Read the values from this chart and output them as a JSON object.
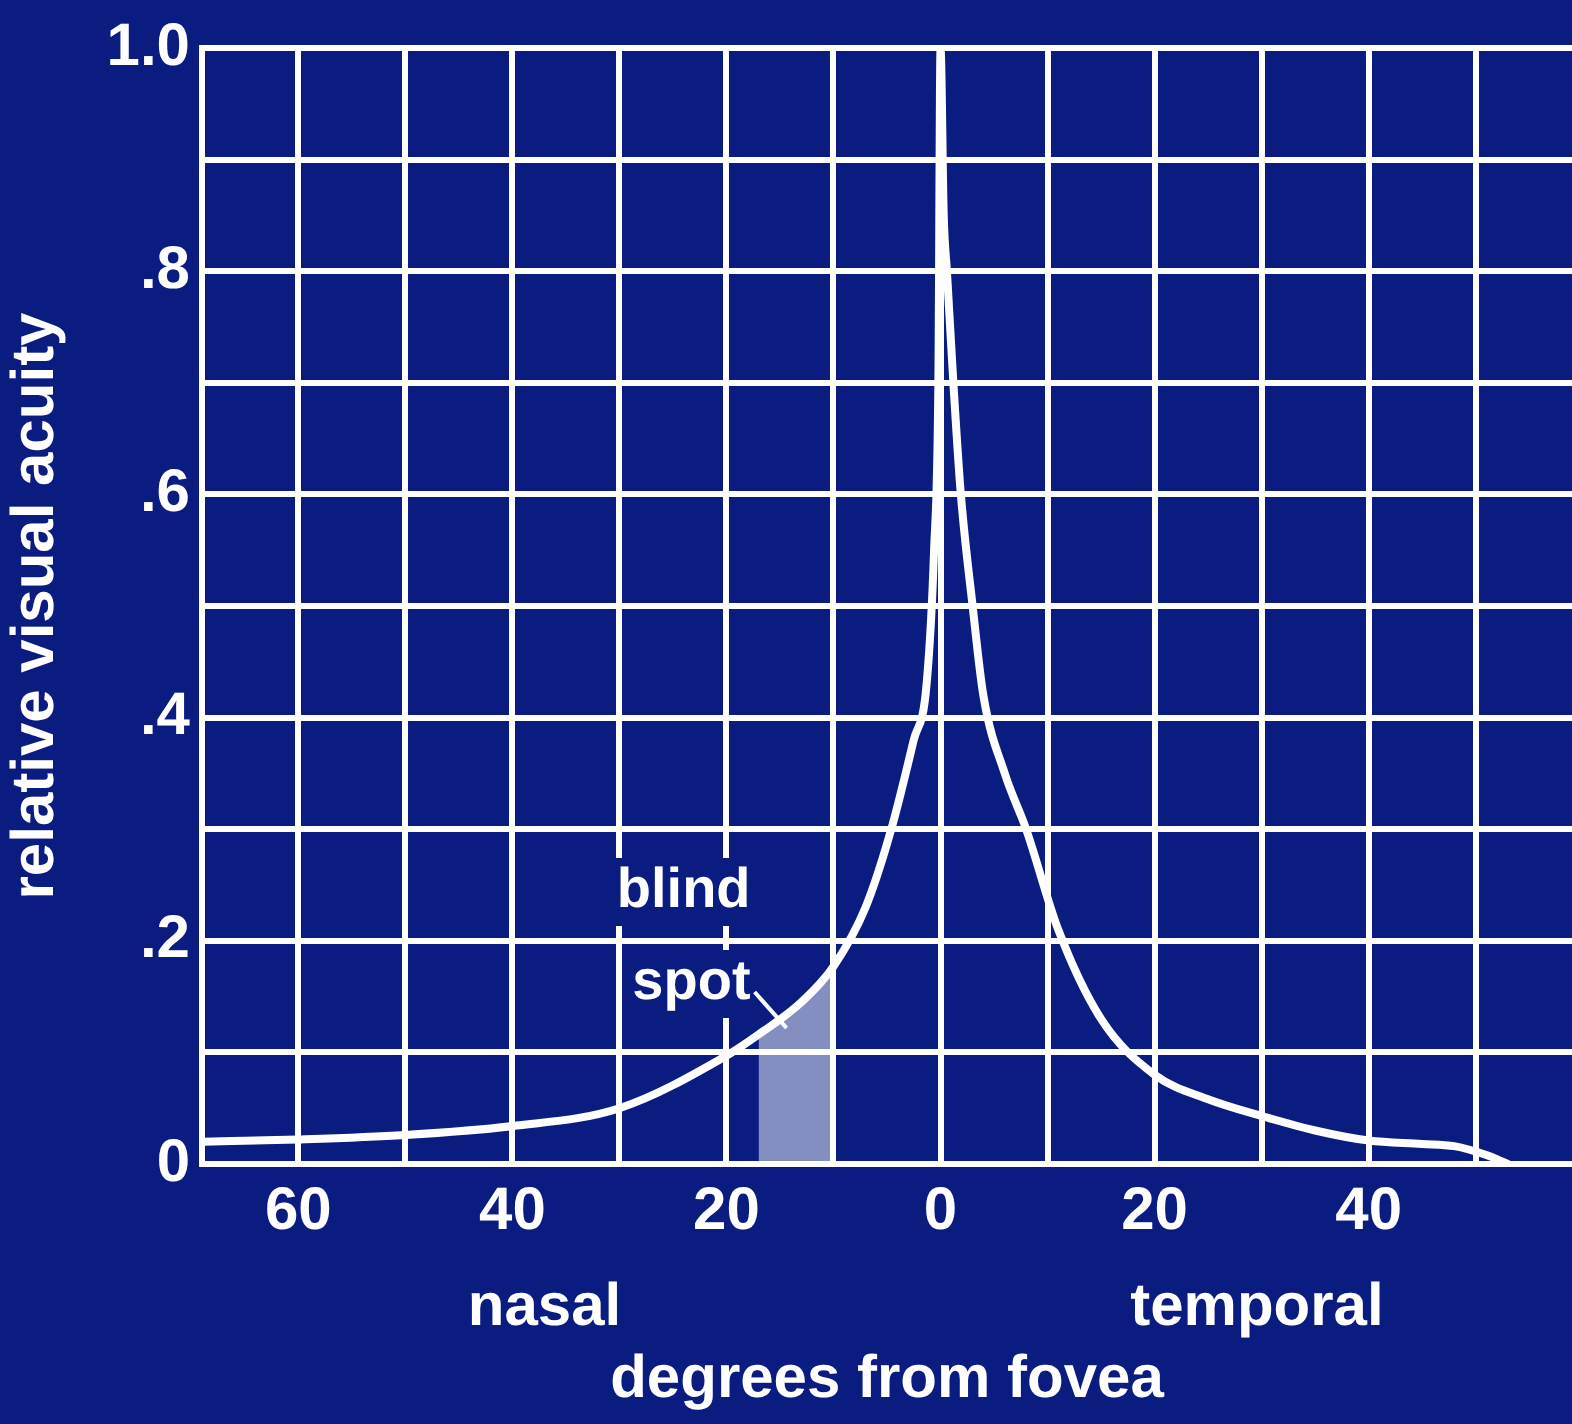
{
  "chart_data": {
    "type": "line",
    "xlabel": "degrees from fovea",
    "ylabel": "relative visual acuity",
    "annotations": [
      "nasal",
      "temporal"
    ],
    "series": [
      {
        "color": "#ffffff",
        "x": [
          -69,
          -60,
          -50,
          -40,
          -30,
          -20,
          -17,
          -13,
          -10,
          -7,
          -4.6,
          -2.5,
          -1.3,
          -0.6,
          -0.2,
          0,
          0.3,
          0.6,
          1.2,
          1.9,
          3,
          4,
          6,
          8,
          11,
          15,
          20,
          25,
          30,
          35,
          40,
          45,
          48,
          51,
          53
        ],
        "values": [
          0.02,
          0.022,
          0.026,
          0.034,
          0.05,
          0.097,
          0.116,
          0.145,
          0.177,
          0.23,
          0.3,
          0.38,
          0.43,
          0.55,
          0.7,
          1.0,
          0.85,
          0.8,
          0.7,
          0.6,
          0.5,
          0.42,
          0.35,
          0.3,
          0.21,
          0.13,
          0.08,
          0.058,
          0.043,
          0.03,
          0.021,
          0.018,
          0.016,
          0.008,
          0
        ]
      }
    ],
    "bands": [
      {
        "axis": "x",
        "from": -17,
        "to": -10,
        "label": "blind spot",
        "color": "#ffffff"
      }
    ],
    "xlim": [
      -69,
      59
    ],
    "xticks": [
      {
        "value": -60,
        "label": "60"
      },
      {
        "value": -50,
        "label": null
      },
      {
        "value": -40,
        "label": "40"
      },
      {
        "value": -30,
        "label": null
      },
      {
        "value": -20,
        "label": "20"
      },
      {
        "value": -10,
        "label": null
      },
      0,
      {
        "value": 10,
        "label": null
      },
      20,
      {
        "value": 30,
        "label": null
      },
      40,
      {
        "value": 50,
        "label": null
      }
    ],
    "ylim": [
      0,
      1
    ],
    "yticks": [
      0,
      {
        "value": 0.1,
        "label": null
      },
      {
        "value": 0.2,
        "label": ".2"
      },
      {
        "value": 0.3,
        "label": null
      },
      {
        "value": 0.4,
        "label": ".4"
      },
      {
        "value": 0.5,
        "label": null
      },
      {
        "value": 0.6,
        "label": ".6"
      },
      {
        "value": 0.7,
        "label": null
      },
      {
        "value": 0.8,
        "label": ".8"
      },
      {
        "value": 0.9,
        "label": null
      },
      {
        "value": 1.0,
        "label": "1.0"
      }
    ],
    "grid": true,
    "legend": false,
    "marker": "none",
    "line_style": "solid"
  }
}
